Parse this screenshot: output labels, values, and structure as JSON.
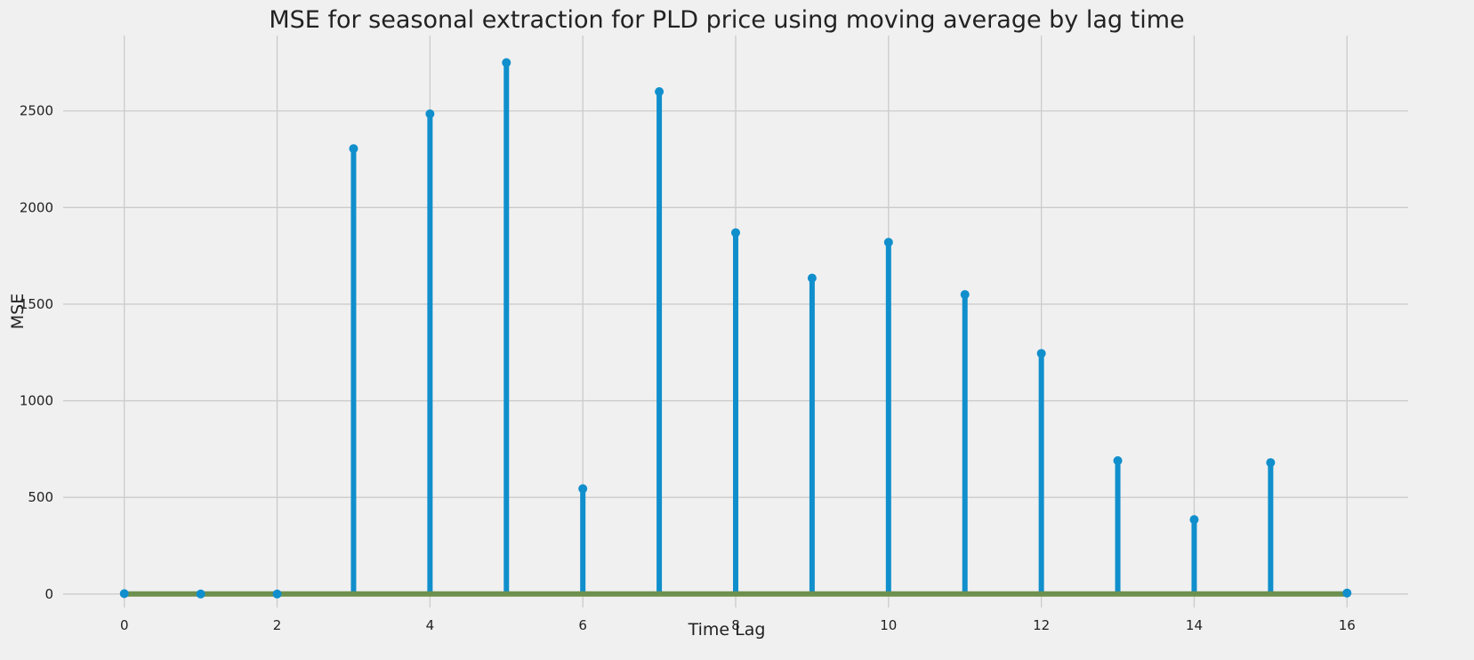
{
  "chart_data": {
    "type": "stem",
    "title": "MSE for seasonal extraction for PLD price using moving average by lag time",
    "xlabel": "Time Lag",
    "ylabel": "MSE",
    "x": [
      0,
      1,
      2,
      3,
      4,
      5,
      6,
      7,
      8,
      9,
      10,
      11,
      12,
      13,
      14,
      15,
      16
    ],
    "series": [
      {
        "values": [
          2,
          0,
          0,
          2305,
          2485,
          2750,
          545,
          2600,
          1870,
          1635,
          1820,
          1550,
          1245,
          690,
          385,
          680,
          5
        ]
      }
    ],
    "baseline": 0,
    "xlim": [
      -0.8,
      16.8
    ],
    "ylim": [
      -70,
      2890
    ],
    "xticks": [
      "0",
      "2",
      "4",
      "6",
      "8",
      "10",
      "12",
      "14",
      "16"
    ],
    "yticks": [
      "0",
      "500",
      "1000",
      "1500",
      "2000",
      "2500"
    ],
    "grid": true,
    "colors": {
      "stem": "#108fcc",
      "marker": "#108fcc",
      "baseline": "#6d904f",
      "background": "#f0f0f0",
      "grid": "#cbcbcb"
    }
  }
}
